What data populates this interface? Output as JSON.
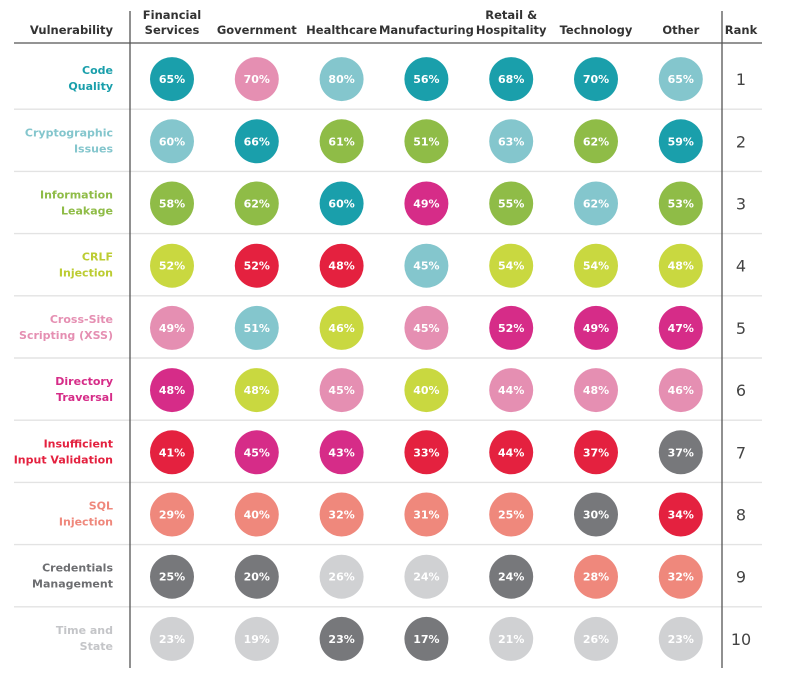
{
  "chart_data": {
    "type": "table",
    "title": "",
    "corner_header": "Vulnerability",
    "rank_header": "Rank",
    "columns": [
      [
        "Financial",
        "Services"
      ],
      [
        "Government"
      ],
      [
        "Healthcare"
      ],
      [
        "Manufacturing"
      ],
      [
        "Retail &",
        "Hospitality"
      ],
      [
        "Technology"
      ],
      [
        "Other"
      ]
    ],
    "rows": [
      {
        "label": [
          "Code",
          "Quality"
        ],
        "color": "dteal",
        "rank": "1",
        "values": [
          65,
          70,
          80,
          56,
          68,
          70,
          65
        ],
        "colors": [
          "dteal",
          "lpink",
          "lteal",
          "dteal",
          "dteal",
          "dteal",
          "lteal"
        ]
      },
      {
        "label": [
          "Cryptographic",
          "Issues"
        ],
        "color": "lteal",
        "rank": "2",
        "values": [
          60,
          66,
          61,
          51,
          63,
          62,
          59
        ],
        "colors": [
          "lteal",
          "dteal",
          "green",
          "green",
          "lteal",
          "green",
          "dteal"
        ]
      },
      {
        "label": [
          "Information",
          "Leakage"
        ],
        "color": "green",
        "rank": "3",
        "values": [
          58,
          62,
          60,
          49,
          55,
          62,
          53
        ],
        "colors": [
          "green",
          "green",
          "dteal",
          "magenta",
          "green",
          "lteal",
          "green"
        ]
      },
      {
        "label": [
          "CRLF",
          "Injection"
        ],
        "color": "lime",
        "rank": "4",
        "values": [
          52,
          52,
          48,
          45,
          54,
          54,
          48
        ],
        "colors": [
          "lime",
          "red",
          "red",
          "lteal",
          "lime",
          "lime",
          "lime"
        ]
      },
      {
        "label": [
          "Cross-Site",
          "Scripting (XSS)"
        ],
        "color": "lpink",
        "rank": "5",
        "values": [
          49,
          51,
          46,
          45,
          52,
          49,
          47
        ],
        "colors": [
          "lpink",
          "lteal",
          "lime",
          "lpink",
          "magenta",
          "magenta",
          "magenta"
        ]
      },
      {
        "label": [
          "Directory",
          "Traversal"
        ],
        "color": "magenta",
        "rank": "6",
        "values": [
          48,
          48,
          45,
          40,
          44,
          48,
          46
        ],
        "colors": [
          "magenta",
          "lime",
          "lpink",
          "lime",
          "lpink",
          "lpink",
          "lpink"
        ]
      },
      {
        "label": [
          "Insufficient",
          "Input Validation"
        ],
        "color": "red",
        "rank": "7",
        "values": [
          41,
          45,
          43,
          33,
          44,
          37,
          37
        ],
        "colors": [
          "red",
          "magenta",
          "magenta",
          "red",
          "red",
          "red",
          "dgray"
        ]
      },
      {
        "label": [
          "SQL",
          "Injection"
        ],
        "color": "salmon",
        "rank": "8",
        "values": [
          29,
          40,
          32,
          31,
          25,
          30,
          34
        ],
        "colors": [
          "salmon",
          "salmon",
          "salmon",
          "salmon",
          "salmon",
          "dgray",
          "red"
        ]
      },
      {
        "label": [
          "Credentials",
          "Management"
        ],
        "color": "dgray",
        "rank": "9",
        "values": [
          25,
          20,
          26,
          24,
          24,
          28,
          32
        ],
        "colors": [
          "dgray",
          "dgray",
          "lgray",
          "lgray",
          "dgray",
          "salmon",
          "salmon"
        ]
      },
      {
        "label": [
          "Time and",
          "State"
        ],
        "color": "lgray",
        "rank": "10",
        "values": [
          23,
          19,
          23,
          17,
          21,
          26,
          23
        ],
        "colors": [
          "lgray",
          "lgray",
          "dgray",
          "dgray",
          "lgray",
          "lgray",
          "lgray"
        ]
      }
    ],
    "value_suffix": "%",
    "palette": {
      "dteal": "#1a9fab",
      "lteal": "#84c6cd",
      "green": "#8fbc47",
      "lime": "#c9d840",
      "lpink": "#e58fb2",
      "magenta": "#d62c88",
      "red": "#e4213f",
      "salmon": "#ef887c",
      "dgray": "#77787b",
      "lgray": "#d0d1d3"
    },
    "label_palette": {
      "lime": "#bccc32",
      "lgray": "#c4c5c8",
      "dgray": "#6d6e71"
    },
    "grid": true,
    "legend": "none"
  }
}
